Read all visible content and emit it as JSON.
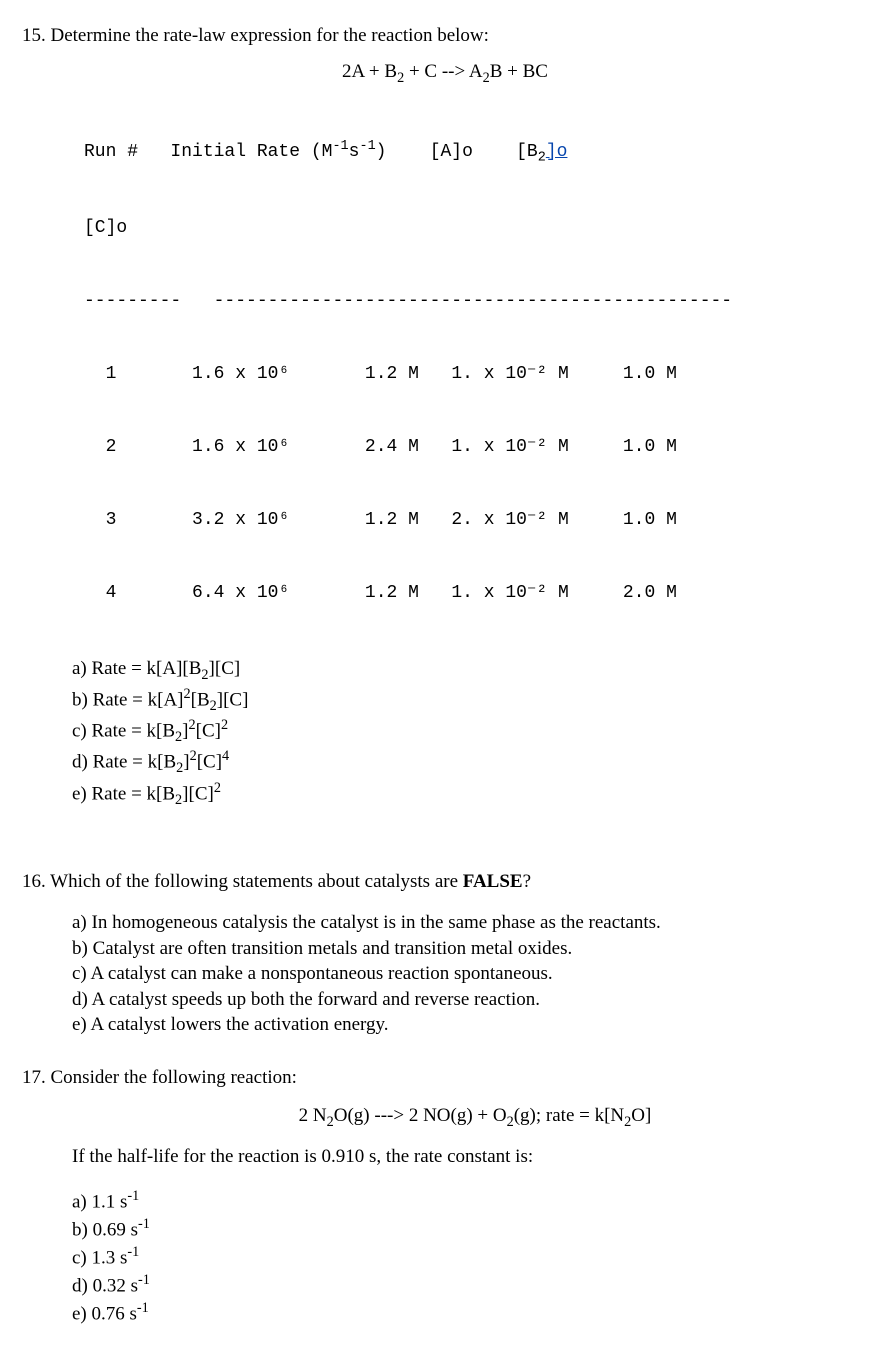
{
  "q15": {
    "prompt": "15. Determine the rate-law expression for the reaction below:",
    "equation_html": "2A + B<span class='sub'>2</span> + C --> A<span class='sub'>2</span>B + BC",
    "table_header_line1": "Run #   Initial Rate (M⁻¹s⁻¹)    [A]o    [B₂]",
    "table_header_ao": "[A]o",
    "table_c": "[C]o",
    "sep1": "---------",
    "sep2": "------------------------------------------------",
    "rows": [
      {
        "run": "1",
        "rate": "1.6 x 10⁶",
        "a": "1.2 M",
        "b": "1. x 10⁻² M",
        "c": "1.0 M"
      },
      {
        "run": "2",
        "rate": "1.6 x 10⁶",
        "a": "2.4 M",
        "b": "1. x 10⁻² M",
        "c": "1.0 M"
      },
      {
        "run": "3",
        "rate": "3.2 x 10⁶",
        "a": "1.2 M",
        "b": "2. x 10⁻² M",
        "c": "1.0 M"
      },
      {
        "run": "4",
        "rate": "6.4 x 10⁶",
        "a": "1.2 M",
        "b": "1. x 10⁻² M",
        "c": "2.0 M"
      }
    ],
    "choices": [
      "a) Rate = k[A][B<span class='sub'>2</span>][C]",
      "b) Rate = k[A]<span class='sup'>2</span>[B<span class='sub'>2</span>][C]",
      "c) Rate = k[B<span class='sub'>2</span>]<span class='sup'>2</span>[C]<span class='sup'>2</span>",
      "d) Rate = k[B<span class='sub'>2</span>]<span class='sup'>2</span>[C]<span class='sup'>4</span>",
      "e) Rate = k[B<span class='sub'>2</span>][C]<span class='sup'>2</span>"
    ]
  },
  "q16": {
    "prompt_prefix": "16. Which of the following statements about catalysts are ",
    "prompt_bold": "FALSE",
    "prompt_suffix": "?",
    "choices": [
      "a) In homogeneous catalysis the catalyst is in the same phase as the reactants.",
      "b) Catalyst are often transition metals and transition metal oxides.",
      "c) A catalyst can make a nonspontaneous reaction spontaneous.",
      "d) A catalyst speeds up both the forward and reverse reaction.",
      "e) A catalyst lowers the activation energy."
    ]
  },
  "q17": {
    "prompt": "17. Consider the following reaction:",
    "equation_html": "2 N<span class='sub'>2</span>O(g) ---> 2 NO(g) + O<span class='sub'>2</span>(g); rate = k[N<span class='sub'>2</span>O]",
    "cond": "If the half-life for the reaction is 0.910 s, the rate constant is:",
    "choices": [
      "a) 1.1 s<span class='sup'>-1</span>",
      "b) 0.69 s<span class='sup'>-1</span>",
      "c) 1.3 s<span class='sup'>-1</span>",
      "d) 0.32 s<span class='sup'>-1</span>",
      "e) 0.76 s<span class='sup'>-1</span>"
    ]
  }
}
